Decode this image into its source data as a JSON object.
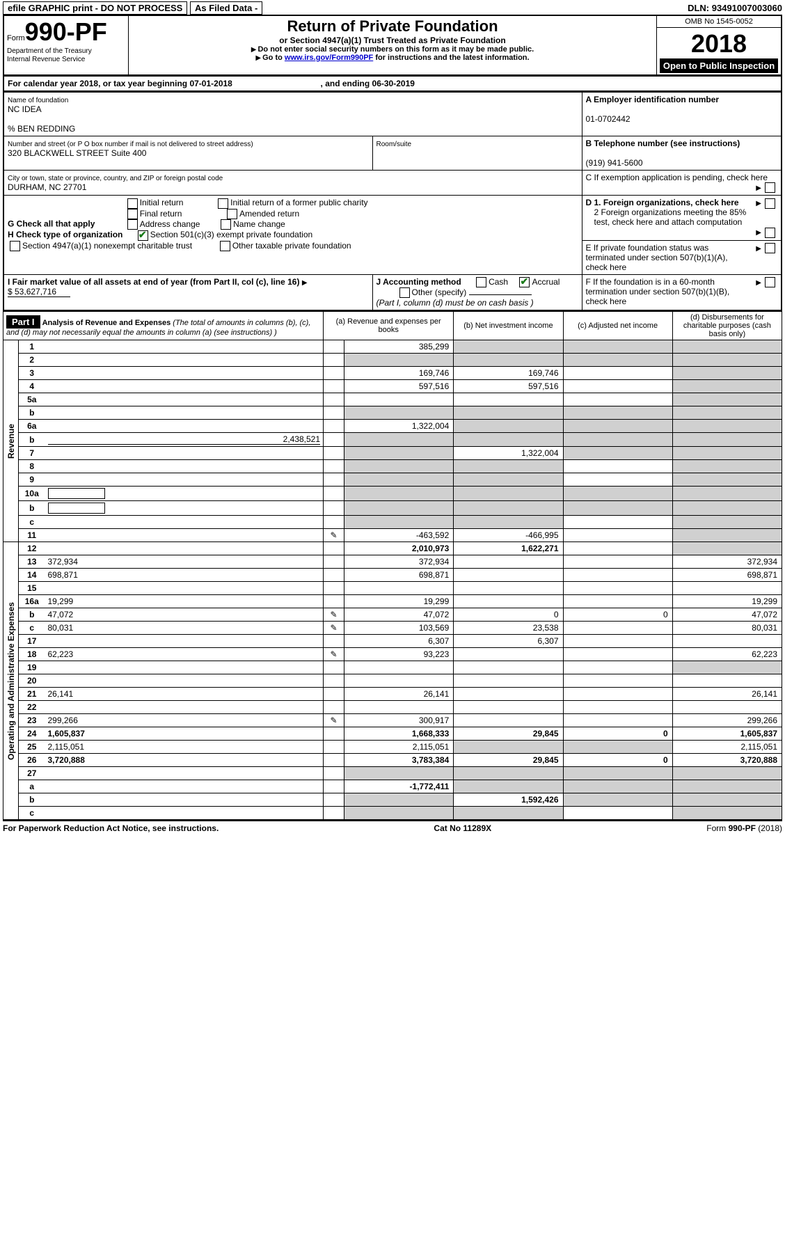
{
  "topbar": {
    "efile": "efile GRAPHIC print - DO NOT PROCESS",
    "asfiled": "As Filed Data -",
    "dln_label": "DLN:",
    "dln": "93491007003060"
  },
  "header": {
    "form_word": "Form",
    "form_number": "990-PF",
    "dept": "Department of the Treasury",
    "irs": "Internal Revenue Service",
    "title": "Return of Private Foundation",
    "subtitle": "or Section 4947(a)(1) Trust Treated as Private Foundation",
    "hint1": "Do not enter social security numbers on this form as it may be made public.",
    "hint2_pre": "Go to ",
    "hint2_link": "www.irs.gov/Form990PF",
    "hint2_post": " for instructions and the latest information.",
    "omb": "OMB No 1545-0052",
    "year": "2018",
    "open": "Open to Public Inspection"
  },
  "cal": {
    "text_pre": "For calendar year 2018, or tax year beginning ",
    "begin": "07-01-2018",
    "mid": ", and ending ",
    "end": "06-30-2019"
  },
  "id": {
    "name_label": "Name of foundation",
    "name": "NC IDEA",
    "care_of": "% BEN REDDING",
    "addr_label": "Number and street (or P O  box number if mail is not delivered to street address)",
    "addr": "320 BLACKWELL STREET Suite 400",
    "room_label": "Room/suite",
    "city_label": "City or town, state or province, country, and ZIP or foreign postal code",
    "city": "DURHAM, NC  27701",
    "A_label": "A Employer identification number",
    "A": "01-0702442",
    "B_label": "B Telephone number (see instructions)",
    "B": "(919) 941-5600",
    "C_label": "C  If exemption application is pending, check here",
    "G_label": "G Check all that apply",
    "G_opts": [
      "Initial return",
      "Initial return of a former public charity",
      "Final return",
      "Amended return",
      "Address change",
      "Name change"
    ],
    "H_label": "H Check type of organization",
    "H_opt1": "Section 501(c)(3) exempt private foundation",
    "H_opt2": "Section 4947(a)(1) nonexempt charitable trust",
    "H_opt3": "Other taxable private foundation",
    "D1": "D 1. Foreign organizations, check here",
    "D2": "2  Foreign organizations meeting the 85% test, check here and attach computation",
    "E": "E  If private foundation status was terminated under section 507(b)(1)(A), check here",
    "F": "F  If the foundation is in a 60-month termination under section 507(b)(1)(B), check here",
    "I_label": "I Fair market value of all assets at end of year (from Part II, col  (c), line 16)",
    "I_val": "$  53,627,716",
    "J_label": "J Accounting method",
    "J_cash": "Cash",
    "J_accrual": "Accrual",
    "J_other": "Other (specify)",
    "J_note": "(Part I, column (d) must be on cash basis )"
  },
  "part1": {
    "label": "Part I",
    "title": "Analysis of Revenue and Expenses",
    "title_note": " (The total of amounts in columns (b), (c), and (d) may not necessarily equal the amounts in column (a) (see instructions) )",
    "cols": {
      "a": "(a) Revenue and expenses per books",
      "b": "(b) Net investment income",
      "c": "(c) Adjusted net income",
      "d": "(d) Disbursements for charitable purposes (cash basis only)"
    }
  },
  "sections": {
    "revenue": "Revenue",
    "opex": "Operating and Administrative Expenses"
  },
  "rows": [
    {
      "n": "1",
      "d": "",
      "a": "385,299",
      "b": "",
      "c": "",
      "shade_b": true,
      "shade_c": true,
      "shade_d": true
    },
    {
      "n": "2",
      "d": "",
      "a": "",
      "b": "",
      "c": "",
      "shade_a": true,
      "shade_b": true,
      "shade_c": true,
      "shade_d": true
    },
    {
      "n": "3",
      "d": "",
      "a": "169,746",
      "b": "169,746",
      "c": "",
      "shade_d": true
    },
    {
      "n": "4",
      "d": "",
      "a": "597,516",
      "b": "597,516",
      "c": "",
      "shade_d": true
    },
    {
      "n": "5a",
      "d": "",
      "a": "",
      "b": "",
      "c": "",
      "shade_d": true
    },
    {
      "n": "b",
      "d": "",
      "a": "",
      "b": "",
      "c": "",
      "shade_a": true,
      "shade_b": true,
      "shade_c": true,
      "shade_d": true,
      "underline": true
    },
    {
      "n": "6a",
      "d": "",
      "a": "1,322,004",
      "b": "",
      "c": "",
      "shade_b": true,
      "shade_c": true,
      "shade_d": true
    },
    {
      "n": "b",
      "d": "",
      "a": "",
      "b": "",
      "c": "",
      "inline_val": "2,438,521",
      "shade_a": true,
      "shade_b": true,
      "shade_c": true,
      "shade_d": true
    },
    {
      "n": "7",
      "d": "",
      "a": "",
      "b": "1,322,004",
      "c": "",
      "shade_a": true,
      "shade_c": true,
      "shade_d": true
    },
    {
      "n": "8",
      "d": "",
      "a": "",
      "b": "",
      "c": "",
      "shade_a": true,
      "shade_b": true,
      "shade_d": true
    },
    {
      "n": "9",
      "d": "",
      "a": "",
      "b": "",
      "c": "",
      "shade_a": true,
      "shade_b": true,
      "shade_d": true
    },
    {
      "n": "10a",
      "d": "",
      "a": "",
      "b": "",
      "c": "",
      "shade_a": true,
      "shade_b": true,
      "shade_c": true,
      "shade_d": true,
      "box": true
    },
    {
      "n": "b",
      "d": "",
      "a": "",
      "b": "",
      "c": "",
      "shade_a": true,
      "shade_b": true,
      "shade_c": true,
      "shade_d": true,
      "box": true
    },
    {
      "n": "c",
      "d": "",
      "a": "",
      "b": "",
      "c": "",
      "shade_a": true,
      "shade_b": true,
      "shade_d": true
    },
    {
      "n": "11",
      "d": "",
      "a": "-463,592",
      "b": "-466,995",
      "c": "",
      "icon": true,
      "shade_d": true
    },
    {
      "n": "12",
      "d": "",
      "a": "2,010,973",
      "b": "1,622,271",
      "c": "",
      "bold": true,
      "shade_d": true
    },
    {
      "n": "13",
      "d": "372,934",
      "a": "372,934",
      "b": "",
      "c": ""
    },
    {
      "n": "14",
      "d": "698,871",
      "a": "698,871",
      "b": "",
      "c": ""
    },
    {
      "n": "15",
      "d": "",
      "a": "",
      "b": "",
      "c": ""
    },
    {
      "n": "16a",
      "d": "19,299",
      "a": "19,299",
      "b": "",
      "c": ""
    },
    {
      "n": "b",
      "d": "47,072",
      "a": "47,072",
      "b": "0",
      "c": "0",
      "icon": true
    },
    {
      "n": "c",
      "d": "80,031",
      "a": "103,569",
      "b": "23,538",
      "c": "",
      "icon": true
    },
    {
      "n": "17",
      "d": "",
      "a": "6,307",
      "b": "6,307",
      "c": ""
    },
    {
      "n": "18",
      "d": "62,223",
      "a": "93,223",
      "b": "",
      "c": "",
      "icon": true
    },
    {
      "n": "19",
      "d": "",
      "a": "",
      "b": "",
      "c": "",
      "shade_d": true
    },
    {
      "n": "20",
      "d": "",
      "a": "",
      "b": "",
      "c": ""
    },
    {
      "n": "21",
      "d": "26,141",
      "a": "26,141",
      "b": "",
      "c": ""
    },
    {
      "n": "22",
      "d": "",
      "a": "",
      "b": "",
      "c": ""
    },
    {
      "n": "23",
      "d": "299,266",
      "a": "300,917",
      "b": "",
      "c": "",
      "icon": true
    },
    {
      "n": "24",
      "d": "1,605,837",
      "a": "1,668,333",
      "b": "29,845",
      "c": "0",
      "bold": true
    },
    {
      "n": "25",
      "d": "2,115,051",
      "a": "2,115,051",
      "b": "",
      "c": "",
      "shade_b": true,
      "shade_c": true
    },
    {
      "n": "26",
      "d": "3,720,888",
      "a": "3,783,384",
      "b": "29,845",
      "c": "0",
      "bold": true
    },
    {
      "n": "27",
      "d": "",
      "a": "",
      "b": "",
      "c": "",
      "shade_a": true,
      "shade_b": true,
      "shade_c": true,
      "shade_d": true
    },
    {
      "n": "a",
      "d": "",
      "a": "-1,772,411",
      "b": "",
      "c": "",
      "bold": true,
      "shade_b": true,
      "shade_c": true,
      "shade_d": true
    },
    {
      "n": "b",
      "d": "",
      "a": "",
      "b": "1,592,426",
      "c": "",
      "bold": true,
      "shade_a": true,
      "shade_c": true,
      "shade_d": true
    },
    {
      "n": "c",
      "d": "",
      "a": "",
      "b": "",
      "c": "",
      "bold": true,
      "shade_a": true,
      "shade_b": true,
      "shade_d": true
    }
  ],
  "footer": {
    "left": "For Paperwork Reduction Act Notice, see instructions.",
    "mid": "Cat No  11289X",
    "right": "Form 990-PF (2018)"
  }
}
